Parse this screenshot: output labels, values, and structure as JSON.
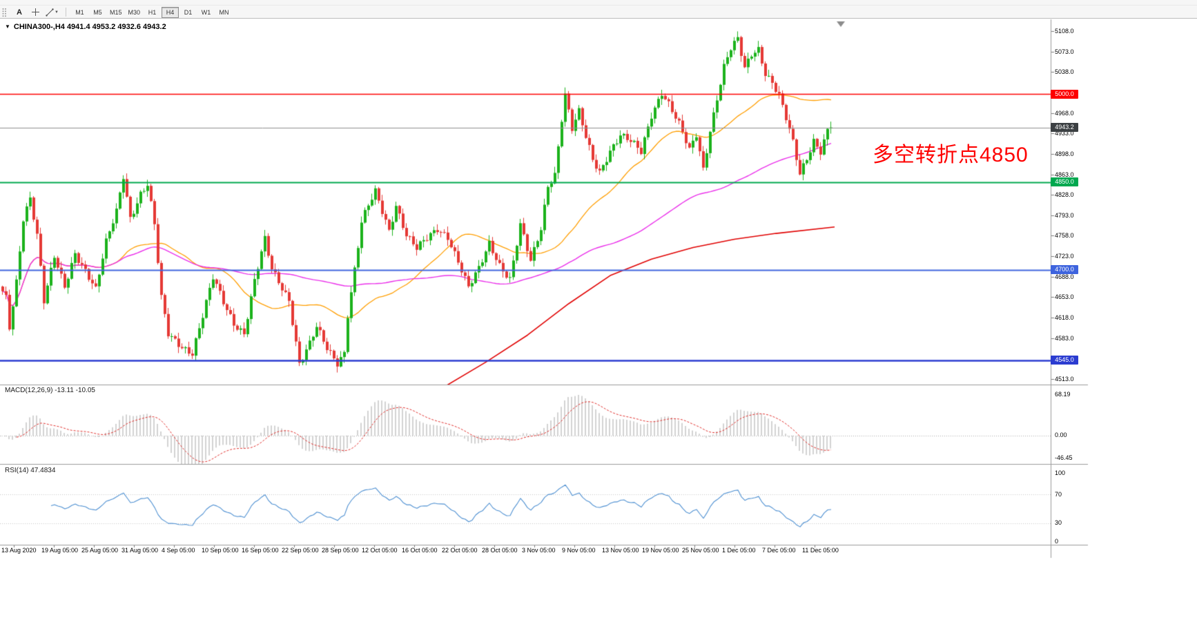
{
  "toolbar": {
    "text_tool_label": "A",
    "timeframes": [
      "M1",
      "M5",
      "M15",
      "M30",
      "H1",
      "H4",
      "D1",
      "W1",
      "MN"
    ],
    "active_timeframe": "H4"
  },
  "icons": {
    "symbol_marker": "▼",
    "dropdown_caret": "▼"
  },
  "chart": {
    "symbol_title": "CHINA300-,H4 4941.4 4953.2 4932.6 4943.2"
  },
  "annotation": {
    "text": "多空转折点4850",
    "color": "#fe0000"
  },
  "macd": {
    "label": "MACD(12,26,9) -13.11 -10.05",
    "scale_labels": [
      "68.19",
      "0.00",
      "-46.45"
    ]
  },
  "rsi": {
    "label": "RSI(14) 47.4834",
    "scale_labels": [
      "100",
      "70",
      "30",
      "0"
    ],
    "levels": [
      70,
      30
    ]
  },
  "price_axis": {
    "ticks": [
      "5108.0",
      "5073.0",
      "5038.0",
      "5003.0",
      "4968.0",
      "4933.0",
      "4898.0",
      "4863.0",
      "4828.0",
      "4793.0",
      "4758.0",
      "4723.0",
      "4688.0",
      "4653.0",
      "4618.0",
      "4583.0",
      "4548.0",
      "4513.0"
    ],
    "badges": [
      {
        "label": "5000.0",
        "price": 5000.0,
        "bg": "#fd0000"
      },
      {
        "label": "4943.2",
        "price": 4943.2,
        "bg": "#3c4043"
      },
      {
        "label": "4850.0",
        "price": 4850.0,
        "bg": "#00a84f"
      },
      {
        "label": "4700.0",
        "price": 4700.0,
        "bg": "#3e64de"
      },
      {
        "label": "4545.0",
        "price": 4545.0,
        "bg": "#2b3cd0"
      }
    ]
  },
  "time_axis": {
    "labels": [
      "13 Aug 2020",
      "19 Aug 05:00",
      "25 Aug 05:00",
      "31 Aug 05:00",
      "4 Sep 05:00",
      "10 Sep 05:00",
      "16 Sep 05:00",
      "22 Sep 05:00",
      "28 Sep 05:00",
      "12 Oct 05:00",
      "16 Oct 05:00",
      "22 Oct 05:00",
      "28 Oct 05:00",
      "3 Nov 05:00",
      "9 Nov 05:00",
      "13 Nov 05:00",
      "19 Nov 05:00",
      "25 Nov 05:00",
      "1 Dec 05:00",
      "7 Dec 05:00",
      "11 Dec 05:00"
    ]
  },
  "chart_data": {
    "type": "candlestick",
    "symbol": "CHINA300-",
    "timeframe": "H4",
    "current_ohlc": {
      "open": 4941.4,
      "high": 4953.2,
      "low": 4932.6,
      "close": 4943.2
    },
    "price_range": {
      "min": 4513.0,
      "max": 5108.0,
      "tick_step": 35
    },
    "num_bars": 241,
    "close_path": [
      [
        0,
        4660
      ],
      [
        1,
        4650
      ],
      [
        2,
        4600
      ],
      [
        4,
        4680
      ],
      [
        6,
        4790
      ],
      [
        8,
        4825
      ],
      [
        10,
        4760
      ],
      [
        12,
        4645
      ],
      [
        15,
        4720
      ],
      [
        18,
        4670
      ],
      [
        21,
        4730
      ],
      [
        24,
        4700
      ],
      [
        27,
        4665
      ],
      [
        30,
        4745
      ],
      [
        33,
        4800
      ],
      [
        35,
        4862
      ],
      [
        37,
        4790
      ],
      [
        40,
        4830
      ],
      [
        42,
        4845
      ],
      [
        44,
        4775
      ],
      [
        46,
        4650
      ],
      [
        48,
        4590
      ],
      [
        52,
        4570
      ],
      [
        55,
        4558
      ],
      [
        58,
        4620
      ],
      [
        61,
        4685
      ],
      [
        64,
        4645
      ],
      [
        67,
        4610
      ],
      [
        70,
        4592
      ],
      [
        73,
        4680
      ],
      [
        76,
        4750
      ],
      [
        78,
        4700
      ],
      [
        81,
        4670
      ],
      [
        83,
        4650
      ],
      [
        86,
        4540
      ],
      [
        89,
        4572
      ],
      [
        91,
        4600
      ],
      [
        94,
        4565
      ],
      [
        97,
        4542
      ],
      [
        99,
        4560
      ],
      [
        100,
        4625
      ],
      [
        102,
        4700
      ],
      [
        104,
        4780
      ],
      [
        106,
        4808
      ],
      [
        108,
        4832
      ],
      [
        110,
        4800
      ],
      [
        112,
        4768
      ],
      [
        114,
        4812
      ],
      [
        117,
        4760
      ],
      [
        120,
        4735
      ],
      [
        123,
        4752
      ],
      [
        126,
        4770
      ],
      [
        129,
        4758
      ],
      [
        132,
        4715
      ],
      [
        135,
        4668
      ],
      [
        138,
        4700
      ],
      [
        141,
        4745
      ],
      [
        144,
        4710
      ],
      [
        147,
        4685
      ],
      [
        150,
        4775
      ],
      [
        153,
        4712
      ],
      [
        156,
        4770
      ],
      [
        158,
        4845
      ],
      [
        160,
        4865
      ],
      [
        162,
        4960
      ],
      [
        163,
        5000
      ],
      [
        165,
        4940
      ],
      [
        167,
        4968
      ],
      [
        169,
        4925
      ],
      [
        171,
        4888
      ],
      [
        173,
        4868
      ],
      [
        176,
        4905
      ],
      [
        179,
        4930
      ],
      [
        182,
        4918
      ],
      [
        185,
        4900
      ],
      [
        188,
        4965
      ],
      [
        191,
        5005
      ],
      [
        193,
        4985
      ],
      [
        196,
        4948
      ],
      [
        199,
        4902
      ],
      [
        201,
        4930
      ],
      [
        203,
        4872
      ],
      [
        205,
        4940
      ],
      [
        207,
        4995
      ],
      [
        209,
        5048
      ],
      [
        211,
        5078
      ],
      [
        213,
        5092
      ],
      [
        215,
        5042
      ],
      [
        217,
        5068
      ],
      [
        219,
        5078
      ],
      [
        221,
        5038
      ],
      [
        223,
        5022
      ],
      [
        225,
        4998
      ],
      [
        227,
        4958
      ],
      [
        229,
        4915
      ],
      [
        231,
        4862
      ],
      [
        233,
        4890
      ],
      [
        235,
        4922
      ],
      [
        237,
        4905
      ],
      [
        239,
        4940
      ],
      [
        240,
        4943.2
      ]
    ],
    "long_ma_path": [
      [
        128,
        4500
      ],
      [
        140,
        4542
      ],
      [
        152,
        4588
      ],
      [
        164,
        4642
      ],
      [
        176,
        4690
      ],
      [
        188,
        4718
      ],
      [
        200,
        4738
      ],
      [
        212,
        4752
      ],
      [
        224,
        4762
      ],
      [
        241,
        4773
      ]
    ],
    "hlines": [
      {
        "price": 5000.0,
        "color": "#fd0000",
        "width": 1.5
      },
      {
        "price": 4850.0,
        "color": "#00a84f",
        "width": 2
      },
      {
        "price": 4700.0,
        "color": "#3e64de",
        "width": 2
      },
      {
        "price": 4545.0,
        "color": "#2b3cd0",
        "width": 2.5
      }
    ],
    "current_price_line": {
      "price": 4943.2,
      "color": "#8c8c8c"
    },
    "colors": {
      "up": "#1cb21c",
      "down": "#e53935",
      "ma_fast": "#ff9e00",
      "ma_mid": "#ea30ea",
      "ma_long": "#e00000",
      "macd_hist": "#d2d2d2",
      "macd_signal": "#e0312e",
      "rsi_line": "#4d8fd1"
    }
  }
}
